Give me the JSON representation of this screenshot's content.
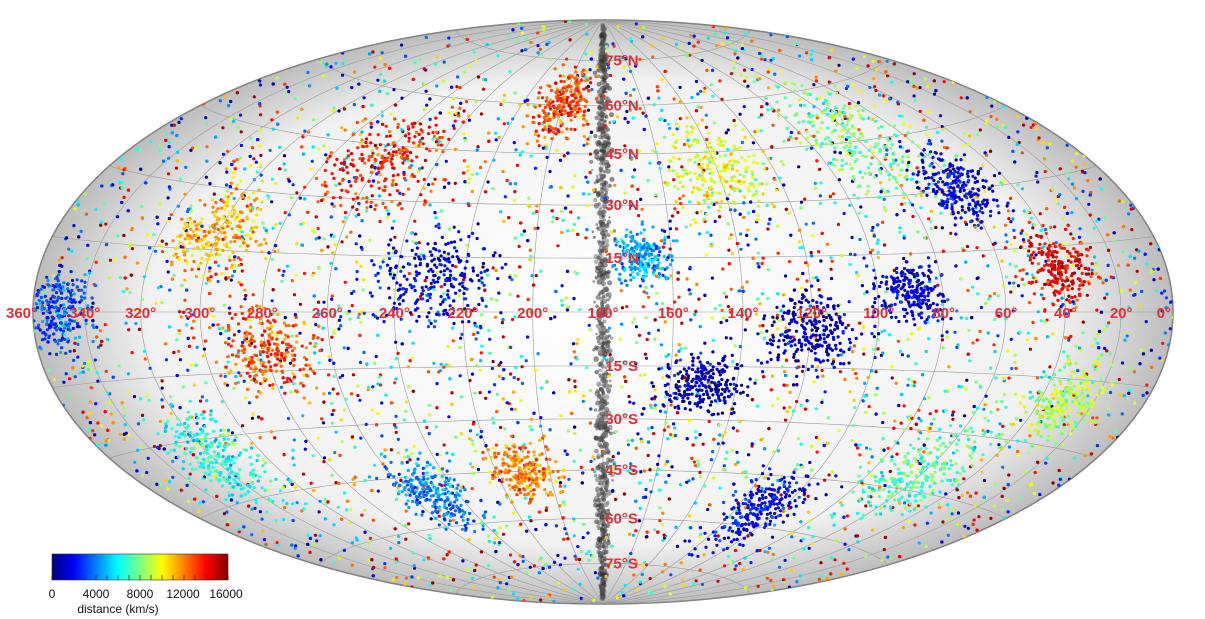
{
  "chart_data": {
    "type": "scatter",
    "projection": "Aitoff-Hammer all-sky",
    "longitude_labels": [
      "360°",
      "340°",
      "320°",
      "300°",
      "280°",
      "260°",
      "240°",
      "220°",
      "200°",
      "180°",
      "160°",
      "140°",
      "120°",
      "100°",
      "80°",
      "60°",
      "40°",
      "20°",
      "0°"
    ],
    "latitude_labels": [
      "75°N",
      "60°N",
      "45°N",
      "30°N",
      "15°N",
      "15°S",
      "30°S",
      "45°S",
      "60°S",
      "75°S"
    ],
    "colorbar": {
      "title": "distance (km/s)",
      "ticks": [
        "0",
        "4000",
        "8000",
        "12000",
        "16000"
      ],
      "range": [
        0,
        16000
      ],
      "colormap": [
        "#00007f",
        "#0000ff",
        "#007fff",
        "#00ffff",
        "#7fff7f",
        "#ffff00",
        "#ff7f00",
        "#ff0000",
        "#7f0000"
      ]
    },
    "zone_of_avoidance": "dark band along longitude 180°",
    "grid": true
  },
  "colors": {
    "sky_background": "#d9d9d9",
    "grid_line": "#9a9a9a",
    "label_red": "#e0303a",
    "milky_way": "#3a3a3a"
  }
}
